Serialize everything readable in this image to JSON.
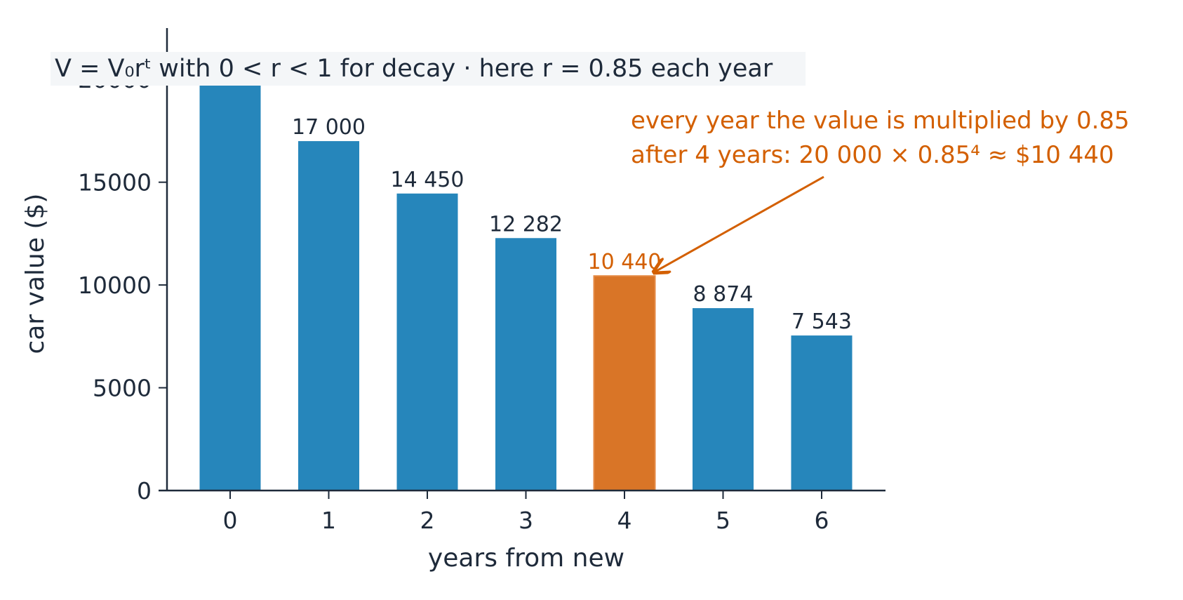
{
  "chart_data": {
    "type": "bar",
    "title_formula": "V = V₀rᵗ",
    "title_text": "with 0 < r < 1 for decay · here r = 0.85 each year",
    "xlabel": "years from new",
    "ylabel": "car value ($)",
    "categories": [
      "0",
      "1",
      "2",
      "3",
      "4",
      "5",
      "6"
    ],
    "values": [
      20000,
      17000,
      14450,
      12282,
      10440,
      8874,
      7543
    ],
    "bar_labels": [
      "",
      "17 000",
      "14 450",
      "12 282",
      "10 440",
      "8 874",
      "7 543"
    ],
    "highlight_index": 4,
    "yticks": [
      0,
      5000,
      10000,
      15000,
      20000
    ],
    "ylim": [
      0,
      22500
    ],
    "colors": {
      "bar": "#2686bb",
      "highlight": "#d97527",
      "annotation": "#d35f00",
      "axis": "#1e2a3a"
    },
    "annotation": {
      "line1": "every year the value is multiplied by 0.85",
      "line2": "after 4 years: 20 000 × 0.85⁴ ≈ $10 440"
    }
  }
}
